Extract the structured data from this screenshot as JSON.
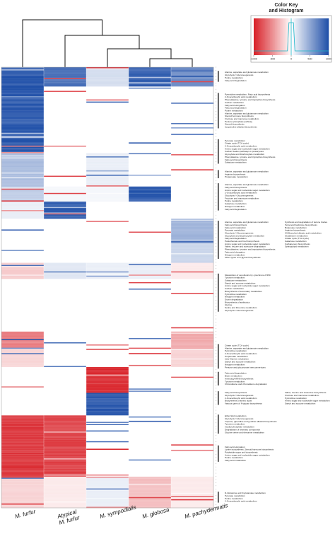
{
  "colors": {
    "high": "#1f4fa8",
    "low": "#d81f26",
    "mid": "#ffffff"
  },
  "color_key": {
    "title_line1": "Color Key",
    "title_line2": "and Histogram",
    "ticks": [
      "-1000",
      "-500",
      "0",
      "500",
      "1000"
    ]
  },
  "chart_data": {
    "type": "heatmap",
    "columns": [
      "M. furfur",
      "Atypical M. furfur",
      "M. sympodialis",
      "M. globosa",
      "M. pachydermatis"
    ],
    "column_labels": [
      {
        "line1": "M. furfur",
        "line2": ""
      },
      {
        "line1": "Atypical",
        "line2": "M. furfur"
      },
      {
        "line1": "M. sympodialis",
        "line2": ""
      },
      {
        "line1": "M. globosa",
        "line2": ""
      },
      {
        "line1": "M. pachydermatis",
        "line2": ""
      }
    ],
    "value_range": [
      -1000,
      1000
    ],
    "blocks": [
      {
        "start": 0.0,
        "end": 0.045,
        "values": [
          1000,
          850,
          200,
          950,
          700
        ]
      },
      {
        "start": 0.045,
        "end": 0.195,
        "values": [
          1000,
          0,
          0,
          0,
          0
        ]
      },
      {
        "start": 0.195,
        "end": 0.27,
        "values": [
          400,
          0,
          100,
          0,
          0
        ]
      },
      {
        "start": 0.27,
        "end": 0.305,
        "values": [
          300,
          50,
          50,
          1000,
          0
        ]
      },
      {
        "start": 0.305,
        "end": 0.345,
        "values": [
          100,
          1000,
          0,
          0,
          0
        ]
      },
      {
        "start": 0.345,
        "end": 0.4,
        "values": [
          0,
          0,
          0,
          0,
          450
        ]
      },
      {
        "start": 0.4,
        "end": 0.445,
        "values": [
          0,
          0,
          0,
          0,
          250
        ]
      },
      {
        "start": 0.445,
        "end": 0.48,
        "values": [
          -250,
          150,
          100,
          100,
          -100
        ]
      },
      {
        "start": 0.48,
        "end": 0.6,
        "values": [
          0,
          0,
          0,
          0,
          0
        ]
      },
      {
        "start": 0.6,
        "end": 0.64,
        "values": [
          -600,
          0,
          0,
          0,
          -400
        ]
      },
      {
        "start": 0.64,
        "end": 0.68,
        "values": [
          -200,
          0,
          0,
          0,
          -200
        ]
      },
      {
        "start": 0.68,
        "end": 0.74,
        "values": [
          0,
          0,
          -1000,
          0,
          0
        ]
      },
      {
        "start": 0.74,
        "end": 0.79,
        "values": [
          0,
          0,
          1000,
          0,
          0
        ]
      },
      {
        "start": 0.79,
        "end": 0.93,
        "values": [
          -950,
          -900,
          0,
          0,
          0
        ]
      },
      {
        "start": 0.93,
        "end": 1.0,
        "values": [
          -200,
          -100,
          100,
          -300,
          -100
        ]
      }
    ],
    "pathway_groups": [
      {
        "pos": 0.01,
        "col": 1,
        "lines": [
          "Alanine, aspartate and glutamate metabolism",
          "Glycolysis / Gluconeogenesis",
          "Purine metabolism",
          "Fatty acid degradation"
        ]
      },
      {
        "pos": 0.06,
        "col": 1,
        "lines": [
          "Pyrimidine metabolism, Fatty acid biosynthesis",
          "2-Oxocarboxylic acid metabolism",
          "Phenylalanine, tyrosine and tryptophan biosynthesis",
          "Carbon metabolism",
          "Fatty acid elongation",
          "Fatty acid degradation",
          "Purine metabolism",
          "Alanine, aspartate and glutamate metabolism",
          "Steroid hormone biosynthesis",
          "Fructose and mannose metabolism",
          "Pentose phosphate pathway",
          "Steroid biosynthesis",
          "Isoquinoline alkaloid biosynthesis"
        ]
      },
      {
        "pos": 0.165,
        "col": 1,
        "lines": [
          "Pyruvate metabolism",
          "Citrate cycle (TCA cycle)",
          "2-Oxocarboxylic acid metabolism",
          "Amino sugar and nucleotide sugar metabolism",
          "Carbon fixation pathways in prokaryotes",
          "Glyoxylate and dicarboxylate metabolism",
          "Phenylalanine, tyrosine and tryptophan biosynthesis",
          "Fatty acid biosynthesis",
          "Galactose metabolism"
        ]
      },
      {
        "pos": 0.235,
        "col": 1,
        "lines": [
          "Alanine, aspartate and glutamate metabolism",
          "Arginine biosynthesis",
          "Propanoate metabolism"
        ]
      },
      {
        "pos": 0.265,
        "col": 1,
        "lines": [
          "Alanine, aspartate and glutamate metabolism",
          "Fatty acid biosynthesis",
          "Amino sugar and nucleotide sugar metabolism",
          "2-Oxocarboxylic acid metabolism",
          "Glycolysis / Gluconeogenesis",
          "Fructose and mannose metabolism",
          "Purine metabolism",
          "Galactose metabolism",
          "Nitrogen metabolism",
          "Fatty acid degradation"
        ]
      },
      {
        "pos": 0.35,
        "col": 1,
        "lines": [
          "Alanine, aspartate and glutamate metabolism",
          "Fatty acid biosynthesis",
          "Fatty acid metabolism",
          "Pyruvate metabolism",
          "Glycolysis / Gluconeogenesis",
          "Glyoxylate and dicarboxylate metabolism",
          "Fatty acid degradation",
          "Pantothenate and CoA biosynthesis",
          "Amino sugar and nucleotide sugar metabolism",
          "Valine, leucine and isoleucine degradation",
          "Phenylalanine, tyrosine and tryptophan biosynthesis",
          "Fatty acid elongation",
          "Nitrogen metabolism",
          "Other types of O-glycan biosynthesis"
        ]
      },
      {
        "pos": 0.35,
        "col": 2,
        "lines": [
          "Synthesis and degradation of ketone bodies",
          "Terpenoid backbone biosynthesis",
          "Butanoate metabolism",
          "Arginine biosynthesis",
          "C5-Branched dibasic acid metabolism",
          "Glutathione metabolism",
          "Citrate cycle (TCA cycle)",
          "Galactose metabolism",
          "Carbapenem biosynthesis",
          "Sphingolipid metabolism"
        ]
      },
      {
        "pos": 0.47,
        "col": 1,
        "lines": [
          "Metabolism of xenobiotics by cytochrome P450",
          "Tyrosine metabolism",
          "Galactose metabolism",
          "Starch and sucrose metabolism",
          "Amino sugar and nucleotide sugar metabolism",
          "Carbon metabolism",
          "Biosynthesis of secondary metabolites",
          "Pyrimidine metabolism",
          "Nitrogen metabolism",
          "Dioxin degradation",
          "Biosynthesis of antibiotics",
          "Glycine",
          "Serine and threonine metabolism",
          "Glycolysis / Gluconeogenesis"
        ]
      },
      {
        "pos": 0.63,
        "col": 1,
        "lines": [
          "Citrate cycle (TCA cycle)",
          "Alanine, aspartate and glutamate metabolism",
          "Pyrimidine metabolism",
          "2-Oxocarboxylic acid metabolism",
          "Propanoate metabolism",
          "beta-Alanine metabolism",
          "Starch and sucrose metabolism",
          "Nitrogen metabolism",
          "Pentose and glucuronate interconversions"
        ]
      },
      {
        "pos": 0.693,
        "col": 1,
        "lines": [
          "Fatty acid degradation",
          "Biotin metabolism",
          "Aminoacyl-tRNA biosynthesis",
          "Tyrosine metabolism",
          "Chloroalkane and chloroalkene degradation"
        ]
      },
      {
        "pos": 0.737,
        "col": 1,
        "lines": [
          "Fatty acid biosynthesis",
          "Glycolysis / Gluconeogenesis",
          "2-Oxocarboxylic acid metabolism",
          "Biosynthesis of amino acids",
          "Various types of N-glycan biosynthesis"
        ]
      },
      {
        "pos": 0.737,
        "col": 2,
        "lines": [
          "Valine, leucine and isoleucine biosynthesis",
          "Fructose and mannose metabolism",
          "Pyrimidine metabolism",
          "Amino sugar and nucleotide sugar metabolism",
          "Starch and sucrose metabolism"
        ]
      },
      {
        "pos": 0.79,
        "col": 1,
        "lines": [
          "Ether lipid metabolism",
          "Glycolysis / Gluconeogenesis",
          "Tropane, piperidine and pyridine alkaloid biosynthesis",
          "Tyrosine metabolism",
          "Inositol phosphate metabolism",
          "Degradation of aromatic compounds",
          "Glycine serine and threonine metabolism"
        ]
      },
      {
        "pos": 0.86,
        "col": 1,
        "lines": [
          "Fatty acid elongation",
          "Lysine biosynthesis, Steroid hormone biosynthesis",
          "Polyketide sugar unit biosynthesis",
          "Amino sugar and nucleotide sugar metabolism",
          "Purine metabolism",
          "Fatty acid metabolism"
        ]
      },
      {
        "pos": 0.965,
        "col": 1,
        "lines": [
          "D-Glutamine and D-glutamate metabolism",
          "Pyruvate metabolism",
          "Purine metabolism",
          "2-Oxocarboxylic acid metabolism"
        ]
      }
    ]
  }
}
